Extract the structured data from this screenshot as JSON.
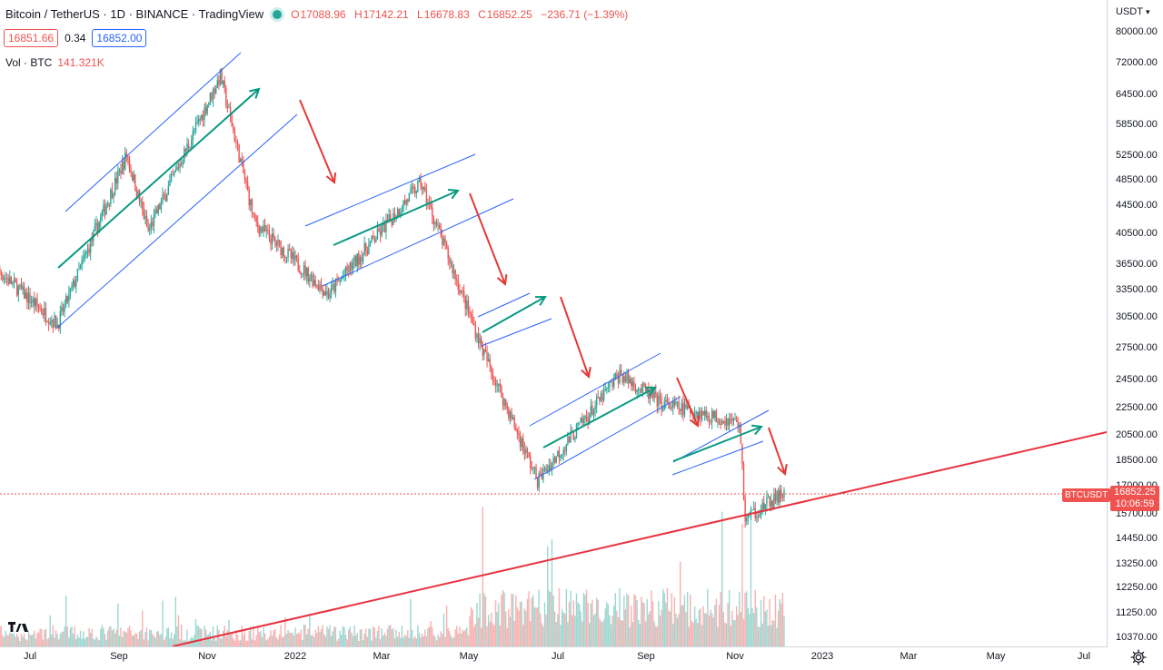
{
  "header": {
    "title": "Bitcoin / TetherUS · 1D · BINANCE · TradingView",
    "open_label": "O",
    "open": "17088.96",
    "high_label": "H",
    "high": "17142.21",
    "low_label": "L",
    "low": "16678.83",
    "close_label": "C",
    "close": "16852.25",
    "change": "−236.71 (−1.39%)"
  },
  "quotes": {
    "sell": "16851.66",
    "spread": "0.34",
    "buy": "16852.00"
  },
  "volume": {
    "label": "Vol · BTC",
    "value": "141.321K"
  },
  "price_axis": {
    "currency": "USDT",
    "ticks": [
      "80000.00",
      "72000.00",
      "64500.00",
      "58500.00",
      "52500.00",
      "48500.00",
      "44500.00",
      "40500.00",
      "36500.00",
      "33500.00",
      "30500.00",
      "27500.00",
      "24500.00",
      "22500.00",
      "20500.00",
      "18500.00",
      "17000.00",
      "15700.00",
      "14450.00",
      "13250.00",
      "12250.00",
      "11250.00",
      "10370.00"
    ]
  },
  "time_axis": {
    "ticks": [
      "Jul",
      "Sep",
      "Nov",
      "2022",
      "Mar",
      "May",
      "Jul",
      "Sep",
      "Nov",
      "2023",
      "Mar",
      "May",
      "Jul"
    ]
  },
  "last_price": {
    "symbol": "BTCUSDT",
    "price": "16852.25",
    "countdown": "10:06:59"
  },
  "icons": {
    "status": "market-open-dot",
    "settings": "gear-icon",
    "logo": "tradingview-logo"
  },
  "colors": {
    "up": "#26a69a",
    "down": "#ef5350",
    "channel": "#2962ff",
    "trend_up": "#089981",
    "trend_down": "#e53935",
    "support": "#e8323e"
  },
  "chart_data": {
    "type": "candlestick",
    "title": "Bitcoin / TetherUS · 1D · BINANCE",
    "scale": "log",
    "ylim": [
      10370,
      80000
    ],
    "x_ticks": [
      "Jul",
      "Sep",
      "Nov",
      "2022",
      "Mar",
      "May",
      "Jul",
      "Sep",
      "Nov",
      "2023",
      "Mar",
      "May",
      "Jul"
    ],
    "period": {
      "start": "2021-06",
      "end": "2022-12"
    },
    "key_points": [
      {
        "date": "2021-06",
        "price": 37000
      },
      {
        "date": "2021-07-20",
        "price": 29800
      },
      {
        "date": "2021-09-06",
        "price": 52800
      },
      {
        "date": "2021-09-21",
        "price": 40800
      },
      {
        "date": "2021-11-10",
        "price": 69000
      },
      {
        "date": "2021-12-04",
        "price": 42000
      },
      {
        "date": "2022-01-24",
        "price": 33000
      },
      {
        "date": "2022-03-29",
        "price": 48000
      },
      {
        "date": "2022-05-12",
        "price": 27000
      },
      {
        "date": "2022-06-18",
        "price": 17600
      },
      {
        "date": "2022-08-14",
        "price": 25200
      },
      {
        "date": "2022-09-12",
        "price": 22800
      },
      {
        "date": "2022-11-05",
        "price": 21400
      },
      {
        "date": "2022-11-09",
        "price": 15500
      },
      {
        "date": "2022-12-06",
        "price": 16852
      }
    ],
    "grid": false,
    "legend": "top-left"
  }
}
